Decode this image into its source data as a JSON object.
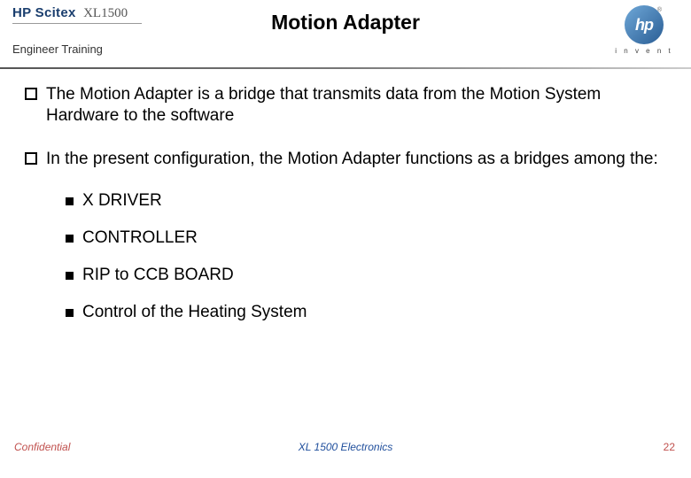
{
  "header": {
    "brand": "HP Scitex",
    "model": "XL1500",
    "subtitle": "Engineer  Training",
    "title": "Motion Adapter",
    "hp_text": "hp",
    "hp_tag": "i n v e n t",
    "reg": "®"
  },
  "bullets": {
    "b1": "The Motion Adapter is a bridge that transmits data from the Motion System Hardware to the software",
    "b2": "In the present configuration, the Motion Adapter functions as a bridges among the:",
    "sub": {
      "s1": "X DRIVER",
      "s2": "CONTROLLER",
      "s3": "RIP to CCB BOARD",
      "s4": "Control of the Heating System"
    }
  },
  "footer": {
    "left": "Confidential",
    "center": "XL 1500 Electronics",
    "page": "22"
  },
  "style": {
    "accent_red": "#c0504d",
    "accent_blue": "#1f4e9c",
    "title_fontsize": 23,
    "body_fontsize": 19,
    "footer_fontsize": 12
  }
}
